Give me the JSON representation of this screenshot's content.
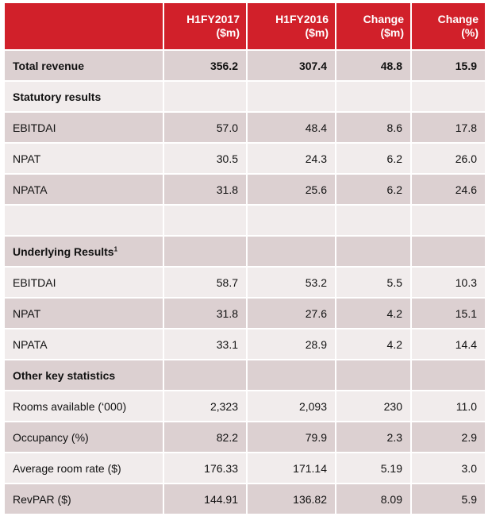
{
  "header": {
    "columns": [
      {
        "line1": "",
        "line2": ""
      },
      {
        "line1": "H1FY2017",
        "line2": "($m)"
      },
      {
        "line1": "H1FY2016",
        "line2": "($m)"
      },
      {
        "line1": "Change",
        "line2": "($m)"
      },
      {
        "line1": "Change",
        "line2": "(%)"
      }
    ]
  },
  "rows": [
    {
      "label": "Total revenue",
      "sup": "",
      "values": [
        "356.2",
        "307.4",
        "48.8",
        "15.9"
      ],
      "style": "shade bold"
    },
    {
      "label": "Statutory results",
      "sup": "",
      "values": [
        "",
        "",
        "",
        ""
      ],
      "style": "light section"
    },
    {
      "label": "EBITDAI",
      "sup": "",
      "values": [
        "57.0",
        "48.4",
        "8.6",
        "17.8"
      ],
      "style": "shade"
    },
    {
      "label": "NPAT",
      "sup": "",
      "values": [
        "30.5",
        "24.3",
        "6.2",
        "26.0"
      ],
      "style": "light"
    },
    {
      "label": "NPATA",
      "sup": "",
      "values": [
        "31.8",
        "25.6",
        "6.2",
        "24.6"
      ],
      "style": "shade"
    },
    {
      "label": "",
      "sup": "",
      "values": [
        "",
        "",
        "",
        ""
      ],
      "style": "light"
    },
    {
      "label": "Underlying Results",
      "sup": "1",
      "values": [
        "",
        "",
        "",
        ""
      ],
      "style": "shade section"
    },
    {
      "label": "EBITDAI",
      "sup": "",
      "values": [
        "58.7",
        "53.2",
        "5.5",
        "10.3"
      ],
      "style": "light"
    },
    {
      "label": "NPAT",
      "sup": "",
      "values": [
        "31.8",
        "27.6",
        "4.2",
        "15.1"
      ],
      "style": "shade"
    },
    {
      "label": "NPATA",
      "sup": "",
      "values": [
        "33.1",
        "28.9",
        "4.2",
        "14.4"
      ],
      "style": "light"
    },
    {
      "label": "Other key statistics",
      "sup": "",
      "values": [
        "",
        "",
        "",
        ""
      ],
      "style": "shade section"
    },
    {
      "label": "Rooms available (‘000)",
      "sup": "",
      "values": [
        "2,323",
        "2,093",
        "230",
        "11.0"
      ],
      "style": "light"
    },
    {
      "label": "Occupancy (%)",
      "sup": "",
      "values": [
        "82.2",
        "79.9",
        "2.3",
        "2.9"
      ],
      "style": "shade"
    },
    {
      "label": "Average room rate ($)",
      "sup": "",
      "values": [
        "176.33",
        "171.14",
        "5.19",
        "3.0"
      ],
      "style": "light"
    },
    {
      "label": "RevPAR ($)",
      "sup": "",
      "values": [
        "144.91",
        "136.82",
        "8.09",
        "5.9"
      ],
      "style": "shade"
    }
  ]
}
